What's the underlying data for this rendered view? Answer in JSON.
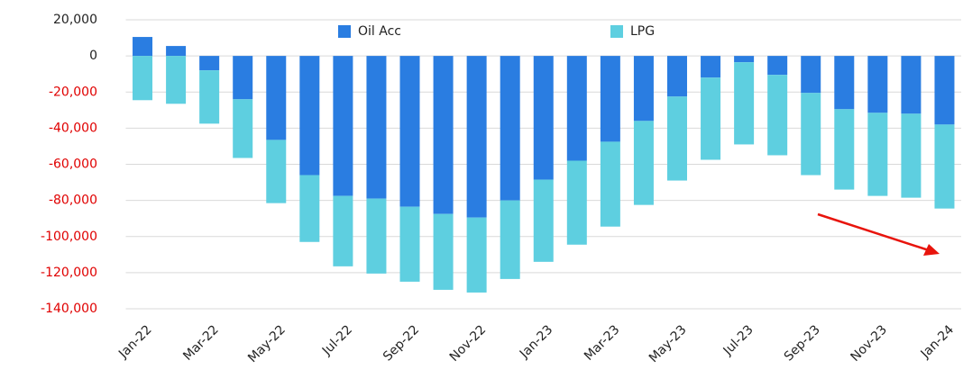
{
  "chart_data": {
    "type": "stacked_bar",
    "categories": [
      "Jan-22",
      null,
      "Mar-22",
      null,
      "May-22",
      null,
      "Jul-22",
      null,
      "Sep-22",
      null,
      "Nov-22",
      null,
      "Jan-23",
      null,
      "Mar-23",
      null,
      "May-23",
      null,
      "Jul-23",
      null,
      "Sep-23",
      null,
      "Nov-23",
      null,
      "Jan-24"
    ],
    "series": [
      {
        "name": "Oil Acc",
        "color": "#2a7de1",
        "values": [
          10500,
          5500,
          -8000,
          -24000,
          -46500,
          -66000,
          -77500,
          -79000,
          -83500,
          -87500,
          -89500,
          -80000,
          -68500,
          -58000,
          -47500,
          -36000,
          -22500,
          -12000,
          -3500,
          -10500,
          -20500,
          -29500,
          -31500,
          -32000,
          -38000
        ]
      },
      {
        "name": "LPG",
        "color": "#5ecfe0",
        "values": [
          -24500,
          -26500,
          -29500,
          -32500,
          -35000,
          -37000,
          -39000,
          -41500,
          -41500,
          -42000,
          -41500,
          -43500,
          -45500,
          -46500,
          -47000,
          -46500,
          -46500,
          -45500,
          -45500,
          -44500,
          -45500,
          -44500,
          -46000,
          -46500,
          -46500
        ]
      }
    ],
    "ylim": [
      -140000,
      20000
    ],
    "yticks": [
      {
        "value": -140000,
        "label": "-140,000"
      },
      {
        "value": -120000,
        "label": "-120,000"
      },
      {
        "value": -100000,
        "label": "-100,000"
      },
      {
        "value": -80000,
        "label": "-80,000"
      },
      {
        "value": -60000,
        "label": "-60,000"
      },
      {
        "value": -40000,
        "label": "-40,000"
      },
      {
        "value": -20000,
        "label": "-20,000"
      },
      0,
      {
        "value": 20000,
        "label": "20,000"
      }
    ],
    "grid": true,
    "legend": "top"
  }
}
